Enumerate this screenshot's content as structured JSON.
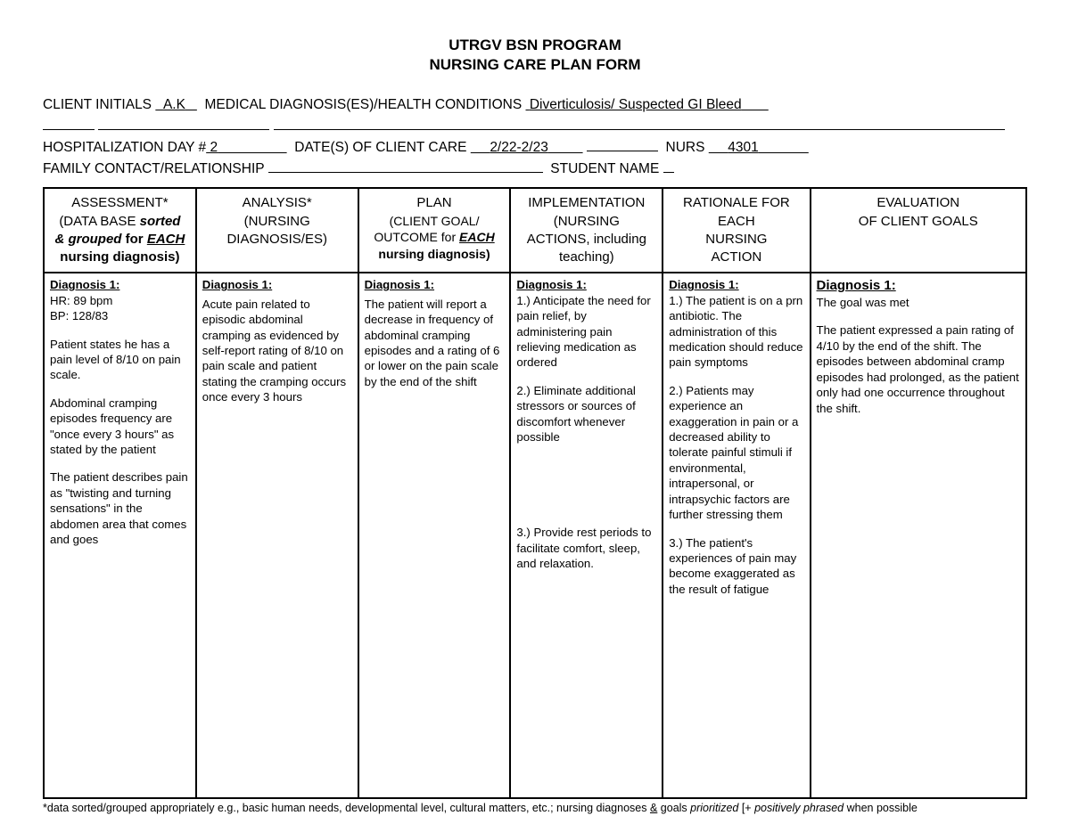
{
  "title": {
    "line1": "UTRGV BSN PROGRAM",
    "line2": "NURSING CARE PLAN FORM"
  },
  "header": {
    "client_initials_label": "CLIENT INITIALS",
    "client_initials_value": "A.K",
    "medical_dx_label": "MEDICAL DIAGNOSIS(ES)/HEALTH CONDITIONS",
    "medical_dx_value": "Diverticulosis/ Suspected GI Bleed",
    "hosp_day_label": "HOSPITALIZATION DAY #",
    "hosp_day_value": "2",
    "dates_label": "DATE(S) OF CLIENT CARE",
    "dates_value": "2/22-2/23",
    "nurs_label": "NURS",
    "nurs_value": "4301",
    "family_label": "FAMILY CONTACT/RELATIONSHIP",
    "student_label": "STUDENT NAME"
  },
  "columns": {
    "assessment": {
      "l1": "ASSESSMENT*",
      "l2a": "(DATA BASE ",
      "l2b": "sorted",
      "l3a": "& grouped",
      "l3b": "  for ",
      "l3c": "EACH",
      "l4": "nursing diagnosis)"
    },
    "analysis": {
      "l1": "ANALYSIS*",
      "l2": "(NURSING",
      "l3": "DIAGNOSIS/ES)"
    },
    "plan": {
      "l1": "PLAN",
      "l2": "(CLIENT GOAL/",
      "l3a": "OUTCOME for ",
      "l3b": "EACH",
      "l4": "nursing diagnosis)"
    },
    "implementation": {
      "l1": "IMPLEMENTATION",
      "l2": "(NURSING",
      "l3": "ACTIONS, including",
      "l4": "teaching)"
    },
    "rationale": {
      "l1": "RATIONALE FOR",
      "l2": "EACH",
      "l3": "NURSING",
      "l4": "ACTION"
    },
    "evaluation": {
      "l1": "EVALUATION",
      "l2": "OF CLIENT GOALS"
    }
  },
  "row": {
    "diag_label": "Diagnosis 1:",
    "assessment": {
      "p1": "HR: 89 bpm",
      "p2": "BP: 128/83",
      "p3": "Patient states he has a pain level of 8/10 on pain scale.",
      "p4": "Abdominal cramping episodes frequency are \"once every 3 hours\" as stated by the patient",
      "p5": "The patient describes pain as \"twisting and turning sensations\" in the abdomen area that comes and goes"
    },
    "analysis": {
      "p1": "Acute pain related to episodic abdominal cramping as evidenced by self-report rating of 8/10 on pain scale and patient stating the cramping occurs once every 3 hours"
    },
    "plan": {
      "p1": "The patient will report a decrease in frequency of abdominal cramping episodes and a rating of 6 or lower on the pain scale by the end of the shift"
    },
    "implementation": {
      "p1": "1.) Anticipate the need for pain relief, by administering pain relieving medication as ordered",
      "p2": "2.) Eliminate additional stressors or sources of discomfort whenever possible",
      "p3": "3.) Provide rest periods to facilitate comfort, sleep, and relaxation."
    },
    "rationale": {
      "p1": "1.) The patient is on a prn antibiotic. The administration of this medication should reduce pain symptoms",
      "p2": "2.)  Patients may experience an exaggeration in pain or a decreased ability to tolerate painful stimuli if environmental, intrapersonal, or intrapsychic factors are further stressing them",
      "p3": "3.) The patient's experiences of pain may become exaggerated as the result of fatigue"
    },
    "evaluation": {
      "p1": "The goal was met",
      "p2": "The patient expressed a pain rating of 4/10 by the end of the shift. The episodes between abdominal cramp episodes had prolonged, as the patient only had one occurrence throughout the shift."
    }
  },
  "footnote": {
    "t1": "*data sorted/grouped appropriately e.g., basic human needs, developmental level, cultural matters, etc.; nursing diagnoses ",
    "amp": "&",
    "t2": " goals ",
    "t3": "prioritized",
    "t4": " [+ ",
    "t5": "positively phrased",
    "t6": " when possible"
  },
  "col_widths": [
    "15.5%",
    "16.5%",
    "15.5%",
    "15.5%",
    "15%",
    "22%"
  ]
}
